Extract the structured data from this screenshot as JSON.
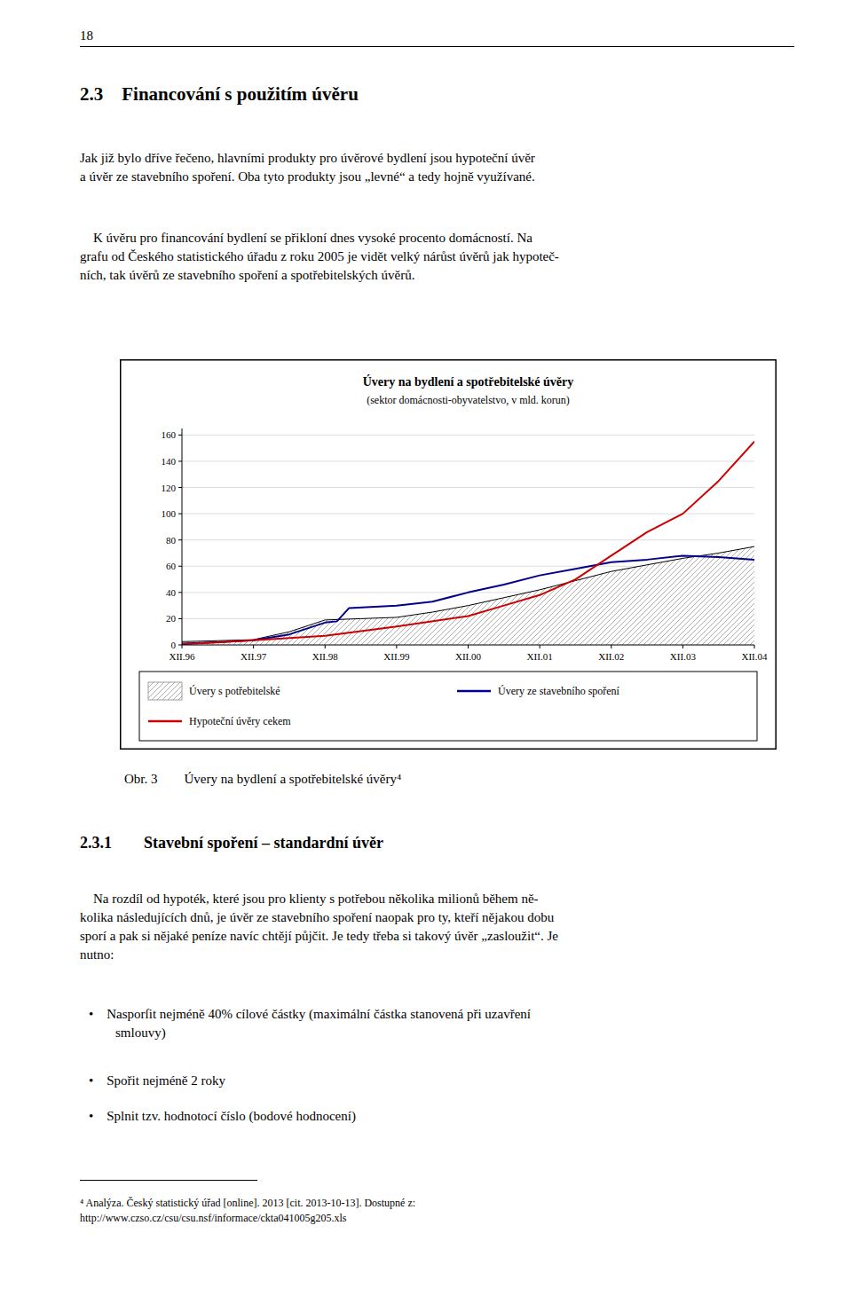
{
  "header": "18",
  "section_title": "2.3 Financování s použitím úvěru",
  "para1": "Jak již bylo dříve řečeno, hlavními produkty pro úvěrové bydlení jsou hypoteční úvěr\na úvěr ze stavebního spoření. Oba tyto produkty jsou „levné“ a tedy hojně využívané.",
  "para2": " K úvěru pro financování bydlení se přikloní dnes vysoké procento domácností. Na\ngrafu od Českého statistického úřadu z roku 2005 je vidět velký nárůst úvěrů jak hypoteč-\nních, tak úvěrů ze stavebního spoření a spotřebitelských úvěrů.",
  "caption": "Obr. 3  Úvery na bydlení a spotřebitelské úvěry⁴",
  "section2_title": "2.3.1  Stavební spoření – standardní úvěr",
  "para3": " Na rozdíl od hypoték, které jsou pro klienty s potřebou několika milionů během ně-\nkolika následujících dnů, je úvěr ze stavebního spoření naopak pro ty, kteří nějakou dobu\nsporí a pak si nějaké peníze navíc chtějí půjčit. Je tedy třeba si takový úvěr „zasloužit“. Je\nnutno:",
  "bullets": [
    "• Nasporſit nejméně 40% cílové částky (maximální částka stanovená při uzavření\n  smlouvy)",
    "• Spořit nejméně 2 roky",
    "• Splnit tzv. hodnotocí číslo (bodové hodnocení)"
  ],
  "footnote": "⁴ Analýza. Český statistický úřad [online]. 2013 [cit. 2013-10-13]. Dostupné z:\nhttp://www.czso.cz/csu/csu.nsf/informace/ckta041005g205.xls",
  "chart_data": {
    "type": "line",
    "title": "Úvery na bydlení a spotřebitelské úvěry",
    "subtitle": "(sektor domácnosti-obyvatelstvo, v mld. korun)",
    "xlim": [
      0,
      96
    ],
    "xticks": [
      {
        "value": 0,
        "label": "XII.96"
      },
      {
        "value": 12,
        "label": "XII.97"
      },
      {
        "value": 24,
        "label": "XII.98"
      },
      {
        "value": 36,
        "label": "XII.99"
      },
      {
        "value": 48,
        "label": "XII.00"
      },
      {
        "value": 60,
        "label": "XII.01"
      },
      {
        "value": 72,
        "label": "XII.02"
      },
      {
        "value": 84,
        "label": "XII.03"
      },
      {
        "value": 96,
        "label": "XII.04"
      }
    ],
    "ylim": [
      0,
      165
    ],
    "yticks": [
      0,
      20,
      40,
      60,
      80,
      100,
      120,
      140,
      160
    ],
    "grid": true,
    "legend": "bottom",
    "series": [
      {
        "name": "Úvery s potřebitelské",
        "type": "area",
        "color": "#999999",
        "x": [
          0,
          6,
          12,
          18,
          24,
          30,
          36,
          42,
          48,
          54,
          60,
          66,
          72,
          78,
          84,
          90,
          96
        ],
        "values": [
          2.5,
          3.2,
          4.0,
          10.0,
          19.0,
          20.0,
          21.0,
          25.0,
          30.0,
          36.0,
          42.0,
          49.0,
          56.0,
          61.0,
          66.0,
          70.0,
          75.0
        ]
      },
      {
        "name": "Úvery ze stavebního spoření",
        "type": "line",
        "color": "#00008B",
        "x": [
          0,
          6,
          12,
          18,
          24,
          26,
          28,
          36,
          42,
          48,
          54,
          60,
          66,
          72,
          78,
          84,
          90,
          96
        ],
        "values": [
          1.0,
          2.0,
          3.5,
          8.0,
          17.0,
          18.0,
          28.0,
          30.0,
          33.0,
          40.0,
          46.0,
          53.0,
          58.0,
          63.0,
          65.0,
          68.0,
          67.0,
          65.0
        ]
      },
      {
        "name": "Hypoteční úvěry cekem",
        "type": "line",
        "color": "#CC0000",
        "x": [
          0,
          12,
          24,
          36,
          48,
          54,
          60,
          66,
          72,
          78,
          84,
          90,
          96
        ],
        "values": [
          0.5,
          3.5,
          7.0,
          14.0,
          22.0,
          30.0,
          38.0,
          50.0,
          68.0,
          86.0,
          100.0,
          125.0,
          155.0
        ]
      }
    ]
  }
}
